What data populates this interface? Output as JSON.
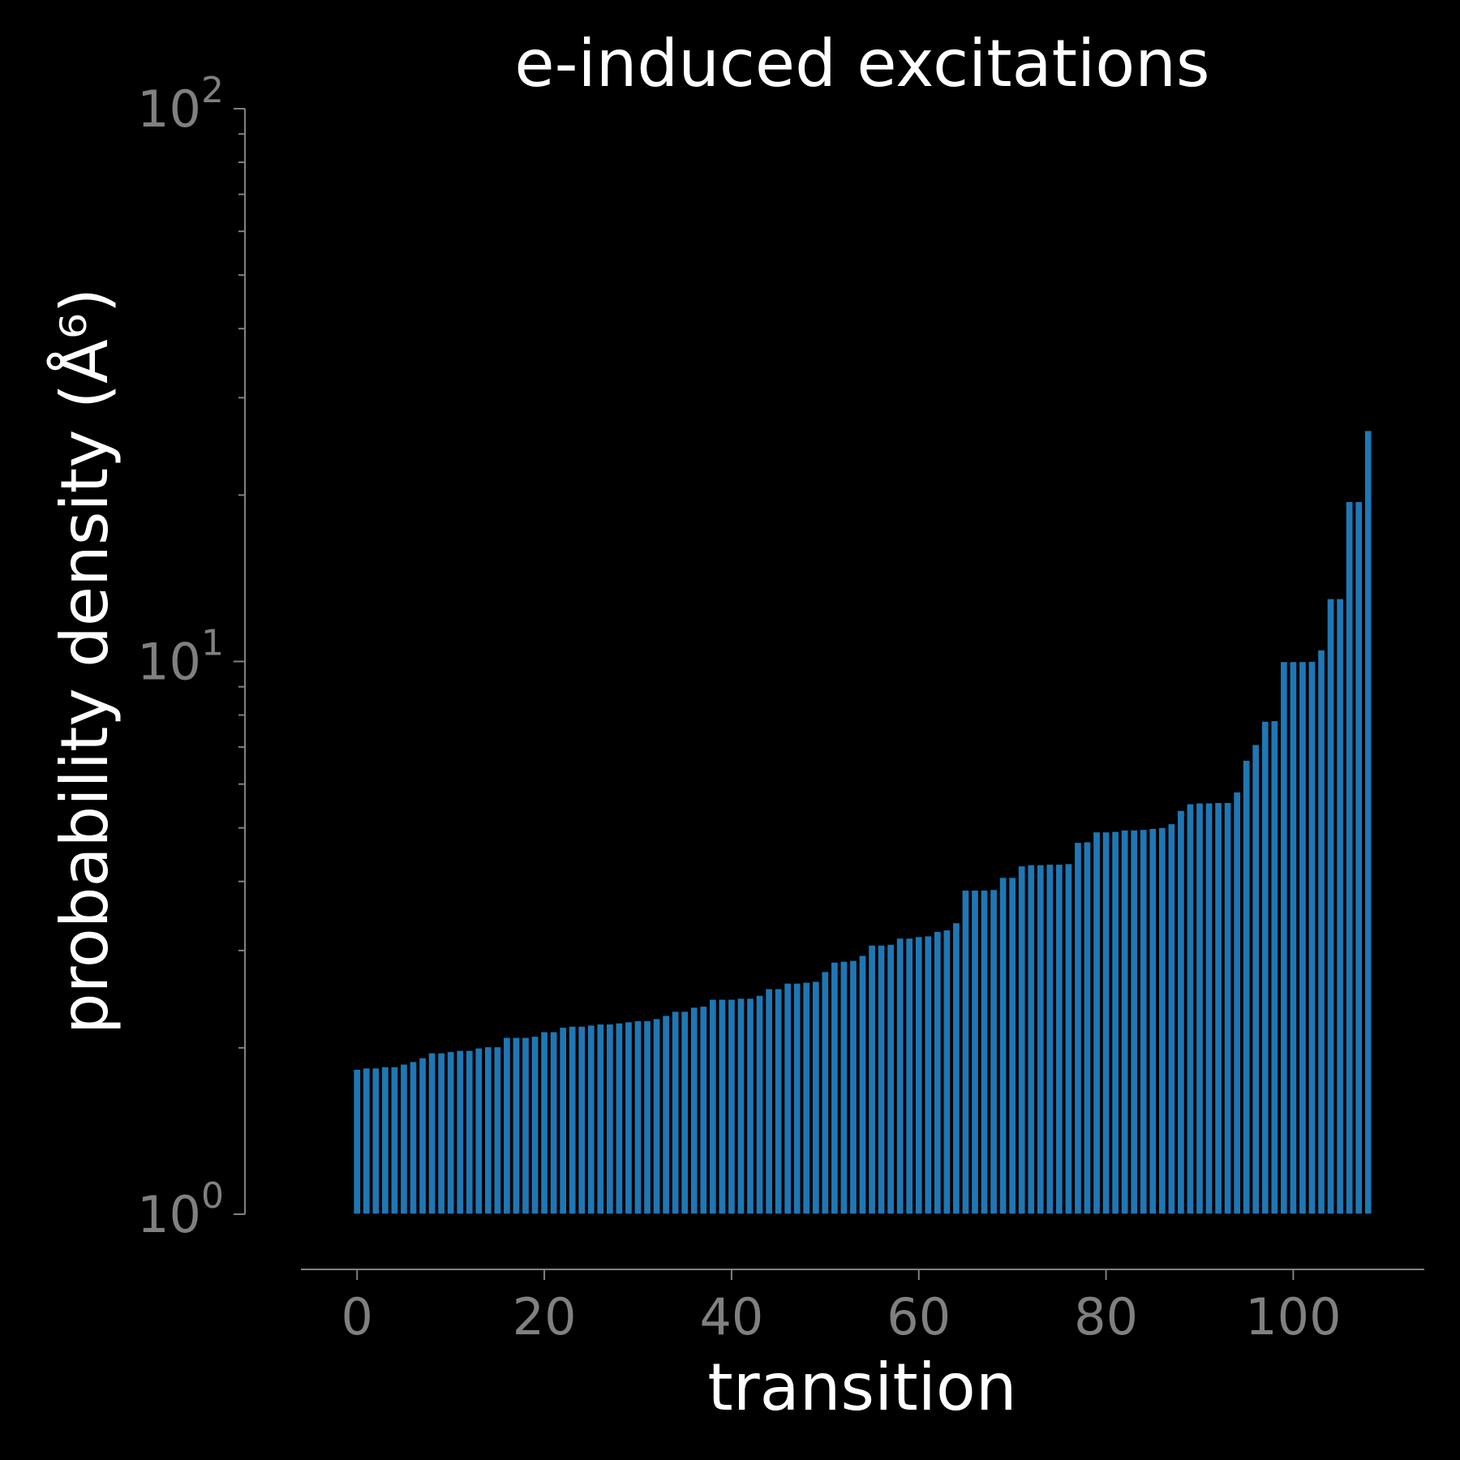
{
  "chart_data": {
    "type": "bar",
    "title": "e-induced excitations",
    "xlabel": "transition",
    "ylabel": "probability density (Å⁶)",
    "yscale": "log",
    "ylim": [
      1,
      100
    ],
    "xlim": [
      -6,
      114
    ],
    "xticks": [
      0,
      20,
      40,
      60,
      80,
      100
    ],
    "yticks": [
      1,
      10,
      100
    ],
    "ytick_labels": [
      {
        "base": "10",
        "exp": "0"
      },
      {
        "base": "10",
        "exp": "1"
      },
      {
        "base": "10",
        "exp": "2"
      }
    ],
    "bar_color": "#1f77b4",
    "grid": false,
    "x": [
      0,
      1,
      2,
      3,
      4,
      5,
      6,
      7,
      8,
      9,
      10,
      11,
      12,
      13,
      14,
      15,
      16,
      17,
      18,
      19,
      20,
      21,
      22,
      23,
      24,
      25,
      26,
      27,
      28,
      29,
      30,
      31,
      32,
      33,
      34,
      35,
      36,
      37,
      38,
      39,
      40,
      41,
      42,
      43,
      44,
      45,
      46,
      47,
      48,
      49,
      50,
      51,
      52,
      53,
      54,
      55,
      56,
      57,
      58,
      59,
      60,
      61,
      62,
      63,
      64,
      65,
      66,
      67,
      68,
      69,
      70,
      71,
      72,
      73,
      74,
      75,
      76,
      77,
      78,
      79,
      80,
      81,
      82,
      83,
      84,
      85,
      86,
      87,
      88,
      89,
      90,
      91,
      92,
      93,
      94,
      95,
      96,
      97,
      98,
      99,
      100,
      101,
      102,
      103,
      104,
      105,
      106,
      107,
      108
    ],
    "values": [
      1.83,
      1.84,
      1.84,
      1.85,
      1.85,
      1.87,
      1.89,
      1.92,
      1.96,
      1.96,
      1.97,
      1.98,
      1.98,
      2.0,
      2.01,
      2.01,
      2.09,
      2.09,
      2.09,
      2.1,
      2.14,
      2.14,
      2.18,
      2.19,
      2.19,
      2.2,
      2.21,
      2.21,
      2.22,
      2.23,
      2.24,
      2.24,
      2.26,
      2.29,
      2.33,
      2.33,
      2.37,
      2.38,
      2.45,
      2.45,
      2.45,
      2.46,
      2.46,
      2.49,
      2.56,
      2.56,
      2.62,
      2.62,
      2.63,
      2.64,
      2.75,
      2.86,
      2.87,
      2.88,
      2.94,
      3.07,
      3.07,
      3.08,
      3.16,
      3.16,
      3.18,
      3.19,
      3.25,
      3.27,
      3.37,
      3.86,
      3.86,
      3.86,
      3.87,
      4.07,
      4.07,
      4.27,
      4.29,
      4.29,
      4.3,
      4.3,
      4.31,
      4.71,
      4.72,
      4.92,
      4.92,
      4.93,
      4.96,
      4.96,
      4.97,
      4.99,
      5.01,
      5.09,
      5.38,
      5.53,
      5.55,
      5.55,
      5.56,
      5.56,
      5.81,
      6.63,
      7.08,
      7.8,
      7.82,
      10.0,
      10.0,
      10.0,
      10.01,
      10.5,
      13.0,
      13.0,
      19.48,
      19.48,
      26.18
    ]
  }
}
